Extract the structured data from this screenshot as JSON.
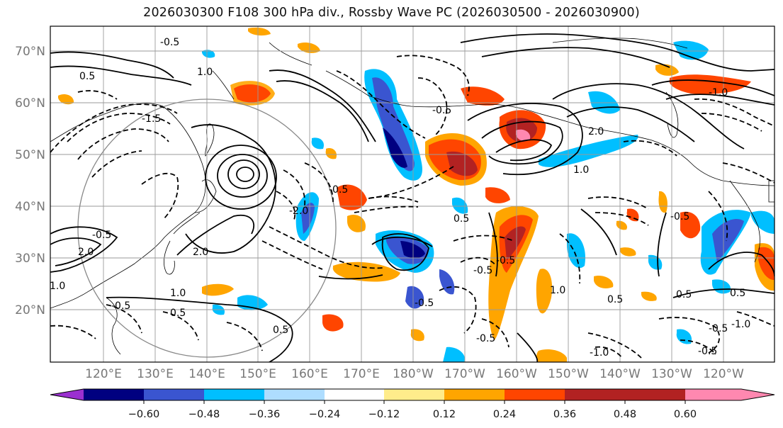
{
  "title": "2026030300 F108 300 hPa div., Rossby Wave PC (2026030500 - 2026030900)",
  "lat_labels": [
    "70°N",
    "60°N",
    "50°N",
    "40°N",
    "30°N",
    "20°N"
  ],
  "lon_labels": [
    "120°E",
    "130°E",
    "140°E",
    "150°E",
    "160°E",
    "170°E",
    "180°W",
    "170°W",
    "160°W",
    "150°W",
    "140°W",
    "130°W",
    "120°W"
  ],
  "colorbar": {
    "colors": [
      "#9b30d0",
      "#000080",
      "#3a55d0",
      "#00bfff",
      "#aeddff",
      "#ffffff",
      "#ffec8b",
      "#ffa500",
      "#ff4500",
      "#b22222",
      "#ff88b0"
    ],
    "tick_labels": [
      "−0.60",
      "−0.48",
      "−0.36",
      "−0.24",
      "−0.12",
      "0.12",
      "0.24",
      "0.36",
      "0.48",
      "0.60"
    ]
  },
  "contour_labels": [
    "1.0",
    "-0.5",
    "0.5",
    "-1.5",
    "-0.5",
    "1.0",
    "2.0",
    "-0.5",
    "0.5",
    "2.0",
    "-2.0",
    "-0.5",
    "-0.5",
    "1.0",
    "0.5",
    "-0.5",
    "0.5",
    "-1.0",
    "0.5",
    "-0.5",
    "2.0",
    "1.0",
    "-0.5",
    "-1.0",
    "0.5",
    "-0.5",
    "1.0",
    "-0.5",
    "-1.0",
    "0.5",
    "-0.5",
    "-0.5"
  ]
}
